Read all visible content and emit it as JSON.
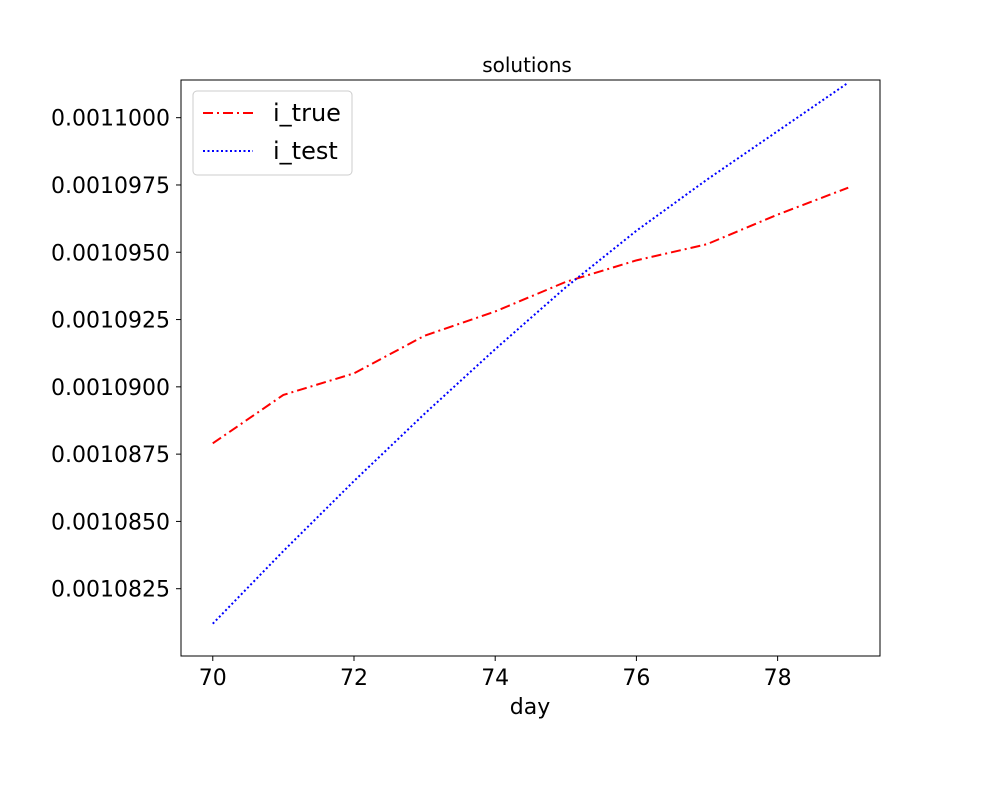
{
  "chart_data": {
    "type": "line",
    "title": "solutions",
    "xlabel": "day",
    "ylabel": "",
    "xlim": [
      69.55,
      79.45
    ],
    "ylim": [
      0.00108,
      0.0011014
    ],
    "x_ticks": [
      70,
      72,
      74,
      76,
      78
    ],
    "x_tick_labels": [
      "70",
      "72",
      "74",
      "76",
      "78"
    ],
    "y_ticks": [
      0.0010825,
      0.001085,
      0.0010875,
      0.00109,
      0.0010925,
      0.001095,
      0.0010975,
      0.0011
    ],
    "y_tick_labels": [
      "0.0010825",
      "0.0010850",
      "0.0010875",
      "0.0010900",
      "0.0010925",
      "0.0010950",
      "0.0010975",
      "0.0011000"
    ],
    "grid": false,
    "legend_position": "upper-left",
    "x": [
      70,
      71,
      72,
      73,
      74,
      75,
      76,
      77,
      78,
      79
    ],
    "series": [
      {
        "name": "i_true",
        "color": "#ff0000",
        "linestyle": "dashdot",
        "values": [
          0.0010879,
          0.0010897,
          0.0010905,
          0.0010919,
          0.0010928,
          0.0010939,
          0.0010947,
          0.0010953,
          0.0010964,
          0.0010974
        ]
      },
      {
        "name": "i_test",
        "color": "#0000ff",
        "linestyle": "dotted",
        "values": [
          0.0010812,
          0.0010839,
          0.0010865,
          0.001089,
          0.0010914,
          0.0010937,
          0.0010958,
          0.0010977,
          0.0010995,
          0.0011013
        ]
      }
    ]
  }
}
